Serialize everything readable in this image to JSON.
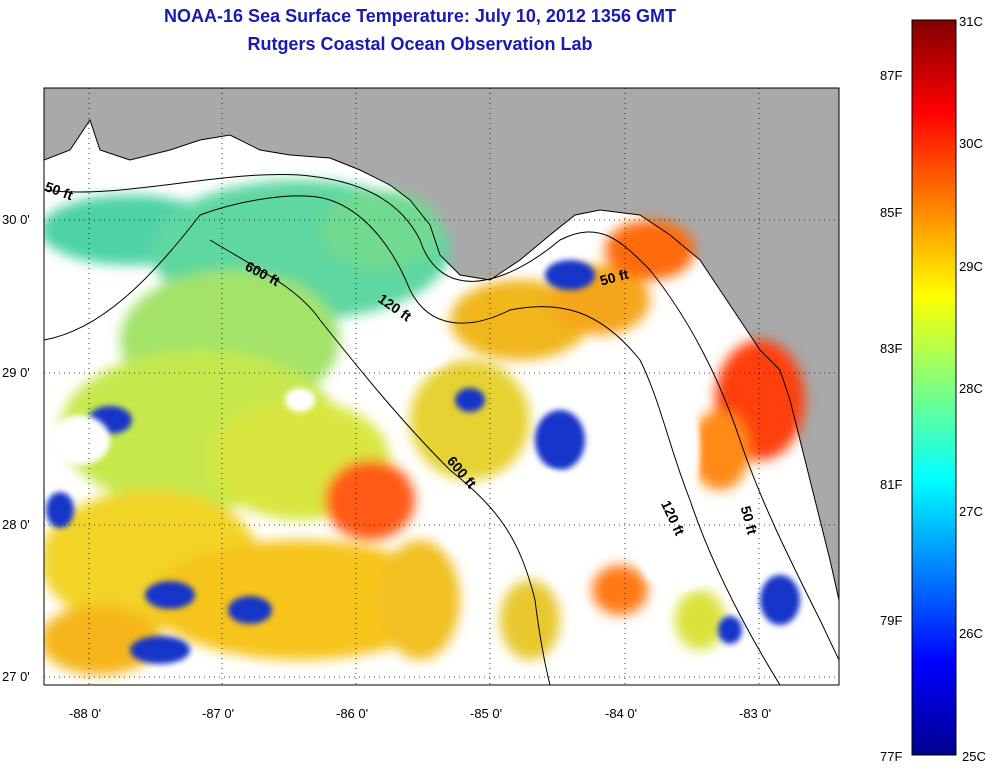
{
  "title_line1": "NOAA-16 Sea Surface Temperature:  July 10, 2012 1356 GMT",
  "title_line2": "Rutgers Coastal Ocean Observation Lab",
  "lat_ticks": [
    "30 0'",
    "29 0'",
    "28 0'",
    "27 0'"
  ],
  "lon_ticks": [
    "-88 0'",
    "-87 0'",
    "-86 0'",
    "-85 0'",
    "-84 0'",
    "-83 0'"
  ],
  "contours": [
    "50 ft",
    "600 ft",
    "120 ft",
    "600 ft",
    "120 ft",
    "50 ft",
    "50 ft"
  ],
  "colorbar": {
    "celsius": [
      "31C",
      "30C",
      "29C",
      "28C",
      "27C",
      "26C",
      "25C"
    ],
    "fahrenheit": [
      "87F",
      "85F",
      "83F",
      "81F",
      "79F",
      "77F"
    ]
  },
  "colors": {
    "title": "#1a1ab0",
    "land": "#a9a9a9",
    "nodata": "#ffffff"
  }
}
